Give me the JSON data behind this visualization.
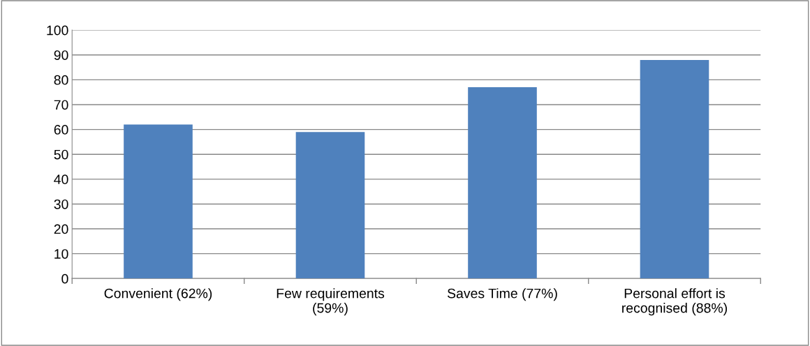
{
  "chart_data": {
    "type": "bar",
    "categories": [
      "Convenient (62%)",
      "Few requirements\n(59%)",
      "Saves Time (77%)",
      "Personal effort is\nrecognised (88%)"
    ],
    "values": [
      62,
      59,
      77,
      88
    ],
    "color": "#4f81bd",
    "ylim": [
      0,
      100
    ],
    "yticks": [
      0,
      10,
      20,
      30,
      40,
      50,
      60,
      70,
      80,
      90,
      100
    ],
    "grid": "y"
  }
}
